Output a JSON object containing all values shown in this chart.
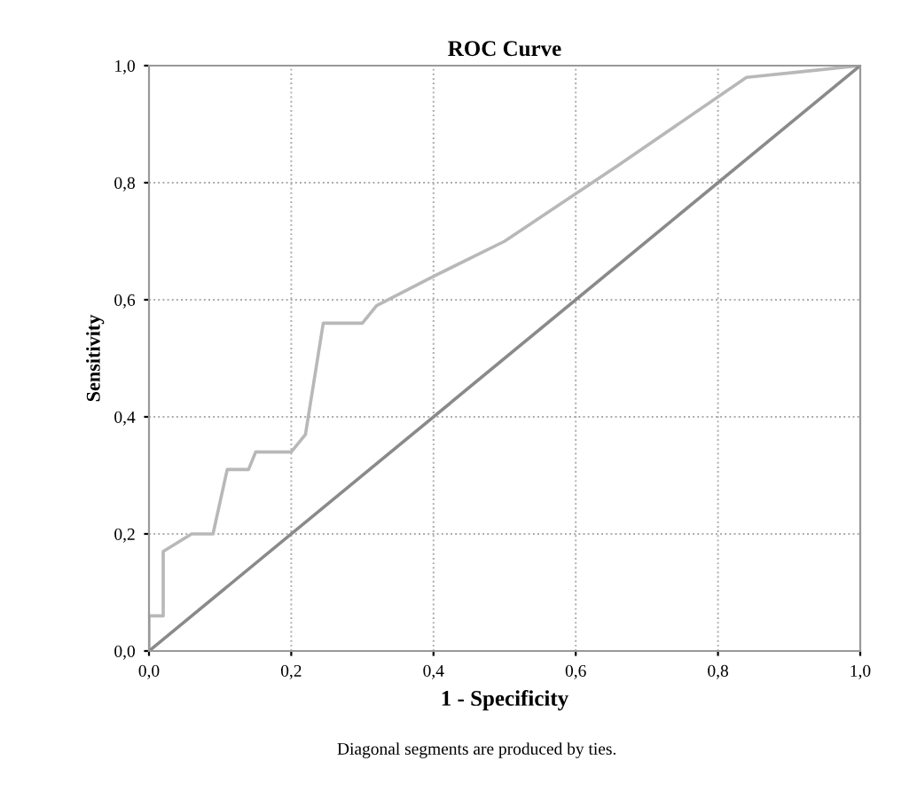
{
  "chart_data": {
    "type": "line",
    "title": "ROC Curve",
    "xlabel": "1 - Specificity",
    "ylabel": "Sensitivity",
    "annotations": [
      "Diagonal segments are produced by ties."
    ],
    "series": [
      {
        "color": "#b8b8b8",
        "x": [
          0,
          0,
          0.02,
          0.02,
          0.06,
          0.09,
          0.11,
          0.14,
          0.15,
          0.2,
          0.22,
          0.245,
          0.3,
          0.32,
          0.4,
          0.5,
          0.66,
          0.84,
          0.92,
          1
        ],
        "values": [
          0,
          0.06,
          0.06,
          0.17,
          0.2,
          0.2,
          0.31,
          0.31,
          0.34,
          0.34,
          0.37,
          0.56,
          0.56,
          0.59,
          0.64,
          0.7,
          0.83,
          0.98,
          0.99,
          1
        ]
      },
      {
        "color": "#8a8a8a",
        "x": [
          0,
          1
        ],
        "values": [
          0,
          1
        ]
      }
    ],
    "xlim": [
      0,
      1
    ],
    "ylim": [
      0,
      1
    ],
    "xticks": [
      {
        "value": 0,
        "label": "0,0"
      },
      {
        "value": 0.2,
        "label": "0,2"
      },
      {
        "value": 0.4,
        "label": "0,4"
      },
      {
        "value": 0.6,
        "label": "0,6"
      },
      {
        "value": 0.8,
        "label": "0,8"
      },
      {
        "value": 1,
        "label": "1,0"
      }
    ],
    "yticks": [
      {
        "value": 0,
        "label": "0,0"
      },
      {
        "value": 0.2,
        "label": "0,2"
      },
      {
        "value": 0.4,
        "label": "0,4"
      },
      {
        "value": 0.6,
        "label": "0,6"
      },
      {
        "value": 0.8,
        "label": "0,8"
      },
      {
        "value": 1,
        "label": "1,0"
      }
    ],
    "grid": true,
    "line_style": "solid"
  }
}
